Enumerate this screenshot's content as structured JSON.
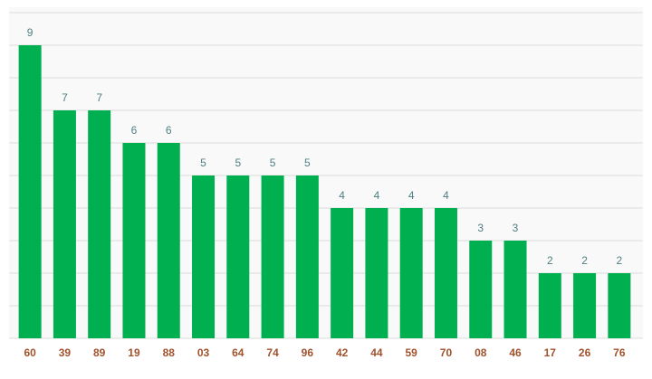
{
  "chart_data": {
    "type": "bar",
    "categories": [
      "60",
      "39",
      "89",
      "19",
      "88",
      "03",
      "64",
      "74",
      "96",
      "42",
      "44",
      "59",
      "70",
      "08",
      "46",
      "17",
      "26",
      "76"
    ],
    "values": [
      9,
      7,
      7,
      6,
      6,
      5,
      5,
      5,
      5,
      4,
      4,
      4,
      4,
      3,
      3,
      2,
      2,
      2
    ],
    "color": "#00b050",
    "ylim": [
      0,
      10
    ],
    "yticks": [
      0,
      1,
      2,
      3,
      4,
      5,
      6,
      7,
      8,
      9,
      10
    ],
    "grid": true
  }
}
